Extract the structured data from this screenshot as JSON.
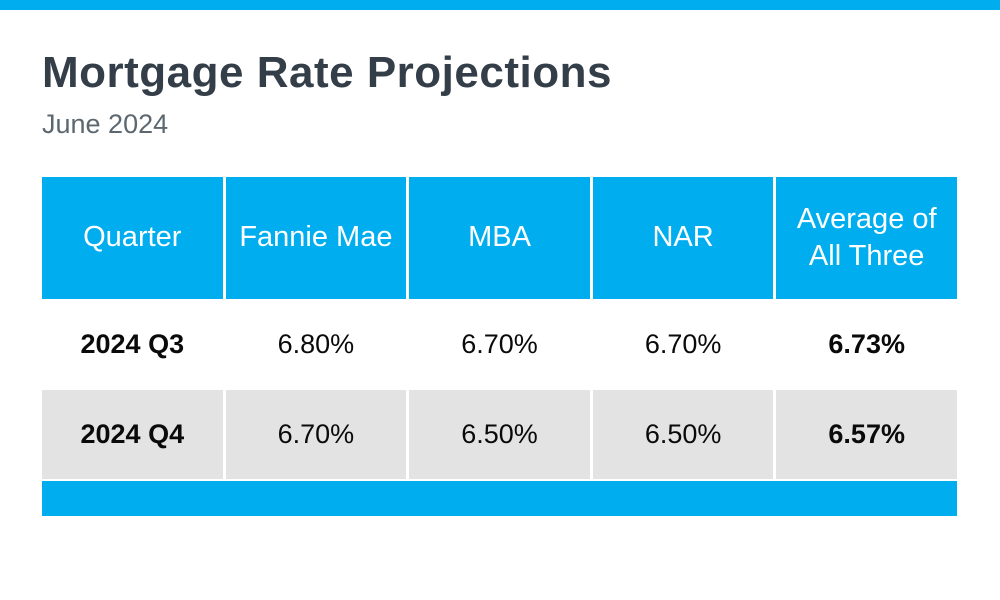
{
  "page": {
    "background": "#FFFFFF",
    "top_bar_color": "#00AEEF"
  },
  "header": {
    "title": "Mortgage Rate Projections",
    "subtitle": "June 2024"
  },
  "colors": {
    "accent_blue": "#00AEEF",
    "title_text": "#333E48",
    "subtitle_text": "#5C6770",
    "table_header_text": "#FFFFFF",
    "alt_row_background": "#E3E3E3",
    "body_text": "#0A0A0A"
  },
  "chart_data": {
    "type": "table",
    "title": "Mortgage Rate Projections",
    "subtitle": "June 2024",
    "columns": [
      "Quarter",
      "Fannie Mae",
      "MBA",
      "NAR",
      "Average of All Three"
    ],
    "rows": [
      [
        "2024 Q3",
        "6.80%",
        "6.70%",
        "6.70%",
        "6.73%"
      ],
      [
        "2024 Q4",
        "6.70%",
        "6.50%",
        "6.50%",
        "6.57%"
      ]
    ],
    "notes": {
      "bold_columns": [
        "Quarter",
        "Average of All Three"
      ],
      "row_striping": "row 1 white, row 2 light gray",
      "footer": "solid blue bar below table, no text"
    }
  }
}
